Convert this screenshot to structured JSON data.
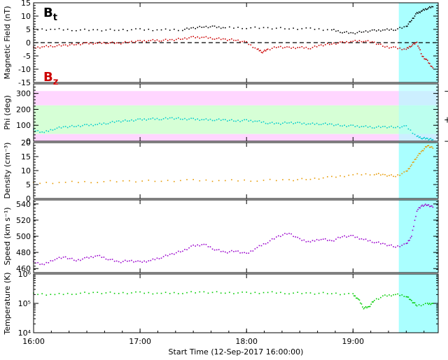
{
  "chart_data": [
    {
      "panel": "magnetic_field",
      "type": "scatter",
      "ylabel": "Magnetic Field (nT)",
      "ylim": [
        -15,
        15
      ],
      "yticks": [
        15,
        10,
        5,
        0,
        -5,
        -10,
        -15
      ],
      "dashed_reference_y": 0,
      "badges": [
        {
          "text": "B",
          "sub": "t",
          "color": "#000000"
        },
        {
          "text": "B",
          "sub": "z",
          "color": "#cc0000"
        }
      ],
      "series": [
        {
          "name": "Bt",
          "color": "#000000",
          "points": [
            [
              0,
              5.0
            ],
            [
              0.2,
              5.0
            ],
            [
              0.4,
              4.8
            ],
            [
              0.6,
              4.7
            ],
            [
              0.8,
              4.8
            ],
            [
              1.0,
              4.9
            ],
            [
              1.2,
              4.8
            ],
            [
              1.4,
              4.9
            ],
            [
              1.5,
              5.5
            ],
            [
              1.6,
              6.0
            ],
            [
              1.7,
              5.9
            ],
            [
              1.8,
              5.6
            ],
            [
              2.0,
              5.6
            ],
            [
              2.2,
              5.5
            ],
            [
              2.4,
              5.3
            ],
            [
              2.6,
              5.2
            ],
            [
              2.8,
              4.8
            ],
            [
              2.9,
              4.0
            ],
            [
              3.0,
              3.5
            ],
            [
              3.1,
              4.2
            ],
            [
              3.2,
              4.5
            ],
            [
              3.3,
              4.8
            ],
            [
              3.4,
              5.0
            ],
            [
              3.5,
              6.0
            ],
            [
              3.55,
              8.5
            ],
            [
              3.6,
              11.0
            ],
            [
              3.65,
              12.0
            ],
            [
              3.7,
              13.0
            ],
            [
              3.75,
              13.5
            ]
          ]
        },
        {
          "name": "Bz",
          "color": "#cc0000",
          "points": [
            [
              0,
              -2.0
            ],
            [
              0.1,
              -1.5
            ],
            [
              0.2,
              -1.2
            ],
            [
              0.3,
              -1.0
            ],
            [
              0.4,
              -0.6
            ],
            [
              0.5,
              -0.3
            ],
            [
              0.6,
              -0.2
            ],
            [
              0.7,
              0.0
            ],
            [
              0.8,
              -0.3
            ],
            [
              0.9,
              0.3
            ],
            [
              1.0,
              0.5
            ],
            [
              1.1,
              0.8
            ],
            [
              1.2,
              0.9
            ],
            [
              1.3,
              1.0
            ],
            [
              1.4,
              1.5
            ],
            [
              1.5,
              2.0
            ],
            [
              1.6,
              2.0
            ],
            [
              1.7,
              1.6
            ],
            [
              1.8,
              1.2
            ],
            [
              1.9,
              1.0
            ],
            [
              2.0,
              0.0
            ],
            [
              2.1,
              -2.5
            ],
            [
              2.15,
              -3.5
            ],
            [
              2.2,
              -2.6
            ],
            [
              2.3,
              -1.5
            ],
            [
              2.4,
              -2.0
            ],
            [
              2.5,
              -1.8
            ],
            [
              2.6,
              -2.0
            ],
            [
              2.7,
              -1.0
            ],
            [
              2.8,
              -0.4
            ],
            [
              2.9,
              0.0
            ],
            [
              3.0,
              0.5
            ],
            [
              3.1,
              0.7
            ],
            [
              3.2,
              0.0
            ],
            [
              3.3,
              -1.5
            ],
            [
              3.4,
              -2.0
            ],
            [
              3.5,
              -2.5
            ],
            [
              3.55,
              -1.0
            ],
            [
              3.6,
              0.0
            ],
            [
              3.65,
              -5.0
            ],
            [
              3.7,
              -7.0
            ],
            [
              3.75,
              -9.5
            ]
          ]
        }
      ]
    },
    {
      "panel": "phi",
      "type": "scatter",
      "ylabel": "Phi (deg)",
      "ylim": [
        0,
        360
      ],
      "yticks": [
        300,
        200,
        100,
        0
      ],
      "bands": [
        {
          "from": 225,
          "to": 315,
          "color": "#ffd6ff"
        },
        {
          "from": 45,
          "to": 225,
          "color": "#d6ffd6"
        },
        {
          "from": 0,
          "to": 45,
          "color": "#ffd6ff"
        }
      ],
      "side_markers": [
        {
          "y": 315,
          "text": "−"
        },
        {
          "y": 135,
          "text": "+"
        },
        {
          "y": 0,
          "text": "−"
        }
      ],
      "series": [
        {
          "name": "Phi",
          "color": "#00cccc",
          "points": [
            [
              0,
              70
            ],
            [
              0.1,
              55
            ],
            [
              0.2,
              80
            ],
            [
              0.3,
              90
            ],
            [
              0.4,
              95
            ],
            [
              0.5,
              100
            ],
            [
              0.6,
              105
            ],
            [
              0.7,
              115
            ],
            [
              0.8,
              125
            ],
            [
              0.9,
              130
            ],
            [
              1.0,
              135
            ],
            [
              1.1,
              140
            ],
            [
              1.2,
              140
            ],
            [
              1.3,
              145
            ],
            [
              1.4,
              140
            ],
            [
              1.5,
              138
            ],
            [
              1.6,
              135
            ],
            [
              1.7,
              135
            ],
            [
              1.8,
              133
            ],
            [
              1.9,
              128
            ],
            [
              2.0,
              130
            ],
            [
              2.1,
              125
            ],
            [
              2.2,
              115
            ],
            [
              2.3,
              110
            ],
            [
              2.4,
              118
            ],
            [
              2.5,
              112
            ],
            [
              2.6,
              108
            ],
            [
              2.7,
              110
            ],
            [
              2.8,
              105
            ],
            [
              2.9,
              98
            ],
            [
              3.0,
              95
            ],
            [
              3.1,
              92
            ],
            [
              3.2,
              88
            ],
            [
              3.3,
              90
            ],
            [
              3.4,
              88
            ],
            [
              3.5,
              92
            ],
            [
              3.6,
              30
            ],
            [
              3.65,
              20
            ],
            [
              3.7,
              15
            ],
            [
              3.75,
              10
            ]
          ]
        }
      ]
    },
    {
      "panel": "density",
      "type": "scatter",
      "ylabel": "Density (cm⁻³)",
      "ylim": [
        0,
        20
      ],
      "yticks": [
        20,
        15,
        10,
        5,
        0
      ],
      "series": [
        {
          "name": "Density",
          "color": "#e69900",
          "points": [
            [
              0,
              5.5
            ],
            [
              0.3,
              5.8
            ],
            [
              0.6,
              6.0
            ],
            [
              0.9,
              6.2
            ],
            [
              1.2,
              6.3
            ],
            [
              1.5,
              6.5
            ],
            [
              1.8,
              6.4
            ],
            [
              2.1,
              6.5
            ],
            [
              2.4,
              6.6
            ],
            [
              2.6,
              7.0
            ],
            [
              2.8,
              7.6
            ],
            [
              3.0,
              8.5
            ],
            [
              3.2,
              8.8
            ],
            [
              3.3,
              8.4
            ],
            [
              3.4,
              8.0
            ],
            [
              3.5,
              9.5
            ],
            [
              3.55,
              12.0
            ],
            [
              3.6,
              15.0
            ],
            [
              3.65,
              17.0
            ],
            [
              3.7,
              19.0
            ],
            [
              3.75,
              18.0
            ]
          ]
        }
      ]
    },
    {
      "panel": "speed",
      "type": "scatter",
      "ylabel": "Speed (km s⁻¹)",
      "ylim": [
        455,
        545
      ],
      "yticks": [
        540,
        520,
        500,
        480,
        460
      ],
      "series": [
        {
          "name": "Speed",
          "color": "#9900cc",
          "points": [
            [
              0,
              468
            ],
            [
              0.1,
              465
            ],
            [
              0.2,
              472
            ],
            [
              0.3,
              474
            ],
            [
              0.4,
              470
            ],
            [
              0.5,
              473
            ],
            [
              0.6,
              476
            ],
            [
              0.7,
              472
            ],
            [
              0.8,
              468
            ],
            [
              0.9,
              470
            ],
            [
              1.0,
              468
            ],
            [
              1.1,
              470
            ],
            [
              1.2,
              474
            ],
            [
              1.3,
              478
            ],
            [
              1.4,
              482
            ],
            [
              1.5,
              488
            ],
            [
              1.6,
              490
            ],
            [
              1.7,
              484
            ],
            [
              1.8,
              480
            ],
            [
              1.9,
              482
            ],
            [
              2.0,
              478
            ],
            [
              2.1,
              486
            ],
            [
              2.2,
              493
            ],
            [
              2.3,
              500
            ],
            [
              2.4,
              504
            ],
            [
              2.5,
              496
            ],
            [
              2.6,
              493
            ],
            [
              2.7,
              497
            ],
            [
              2.8,
              494
            ],
            [
              2.9,
              500
            ],
            [
              3.0,
              500
            ],
            [
              3.1,
              496
            ],
            [
              3.2,
              493
            ],
            [
              3.3,
              490
            ],
            [
              3.4,
              487
            ],
            [
              3.5,
              490
            ],
            [
              3.55,
              500
            ],
            [
              3.6,
              532
            ],
            [
              3.65,
              538
            ],
            [
              3.7,
              539
            ],
            [
              3.75,
              536
            ]
          ]
        }
      ]
    },
    {
      "panel": "temperature",
      "type": "scatter",
      "ylabel": "Temperature (K)",
      "yscale": "log",
      "ylim": [
        10000,
        1000000
      ],
      "yticks": [
        {
          "value": 1000000,
          "label": "10⁶"
        },
        {
          "value": 100000,
          "label": "10⁵"
        },
        {
          "value": 10000,
          "label": "10⁴"
        }
      ],
      "series": [
        {
          "name": "Temperature",
          "color": "#00cc00",
          "points": [
            [
              0,
              210000
            ],
            [
              0.2,
              200000
            ],
            [
              0.4,
              220000
            ],
            [
              0.6,
              230000
            ],
            [
              0.8,
              225000
            ],
            [
              1.0,
              230000
            ],
            [
              1.2,
              220000
            ],
            [
              1.4,
              230000
            ],
            [
              1.6,
              240000
            ],
            [
              1.8,
              230000
            ],
            [
              2.0,
              225000
            ],
            [
              2.2,
              235000
            ],
            [
              2.4,
              225000
            ],
            [
              2.6,
              220000
            ],
            [
              2.8,
              220000
            ],
            [
              3.0,
              200000
            ],
            [
              3.05,
              140000
            ],
            [
              3.1,
              70000
            ],
            [
              3.15,
              75000
            ],
            [
              3.2,
              130000
            ],
            [
              3.3,
              180000
            ],
            [
              3.4,
              200000
            ],
            [
              3.5,
              180000
            ],
            [
              3.55,
              120000
            ],
            [
              3.6,
              85000
            ],
            [
              3.7,
              95000
            ],
            [
              3.75,
              100000
            ]
          ]
        }
      ]
    }
  ],
  "shared": {
    "x_unit": "hours since start",
    "xlim": [
      0,
      3.8
    ],
    "xticks": [
      {
        "value": 0,
        "label": "16:00"
      },
      {
        "value": 1,
        "label": "17:00"
      },
      {
        "value": 2,
        "label": "18:00"
      },
      {
        "value": 3,
        "label": "19:00"
      }
    ],
    "xlabel": "Start Time (12-Sep-2017 16:00:00)",
    "highlight_region": {
      "from": 3.43,
      "to": 3.8,
      "color": "#aaffff"
    }
  }
}
